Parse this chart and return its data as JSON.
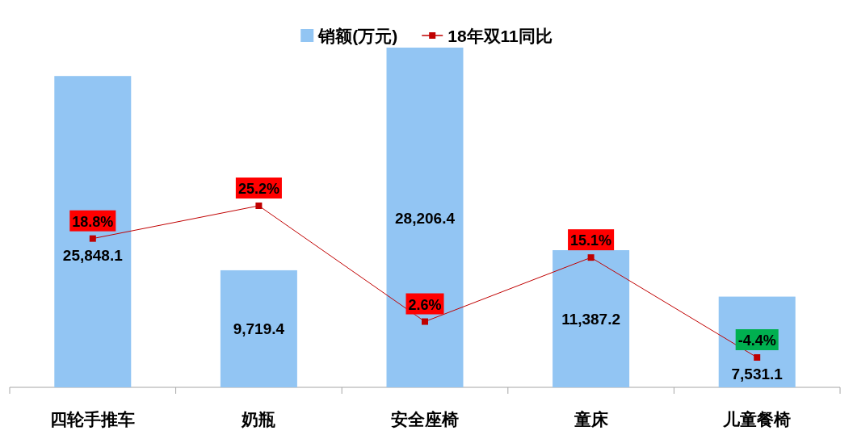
{
  "chart_data": {
    "type": "bar",
    "categories": [
      "四轮手推车",
      "奶瓶",
      "安全座椅",
      "童床",
      "儿童餐椅"
    ],
    "series": [
      {
        "name": "销额(万元)",
        "type": "bar",
        "color": "#92c5f3",
        "values": [
          25848.1,
          9719.4,
          28206.4,
          11387.2,
          7531.1
        ],
        "value_labels": [
          "25,848.1",
          "9,719.4",
          "28,206.4",
          "11,387.2",
          "7,531.1"
        ]
      },
      {
        "name": "18年双11同比",
        "type": "line",
        "axis": "y2",
        "color": "#c00000",
        "marker": "square",
        "values": [
          18.8,
          25.2,
          2.6,
          15.1,
          -4.4
        ],
        "value_labels": [
          "18.8%",
          "25.2%",
          "2.6%",
          "15.1%",
          "-4.4%"
        ]
      }
    ],
    "legend": "top"
  }
}
